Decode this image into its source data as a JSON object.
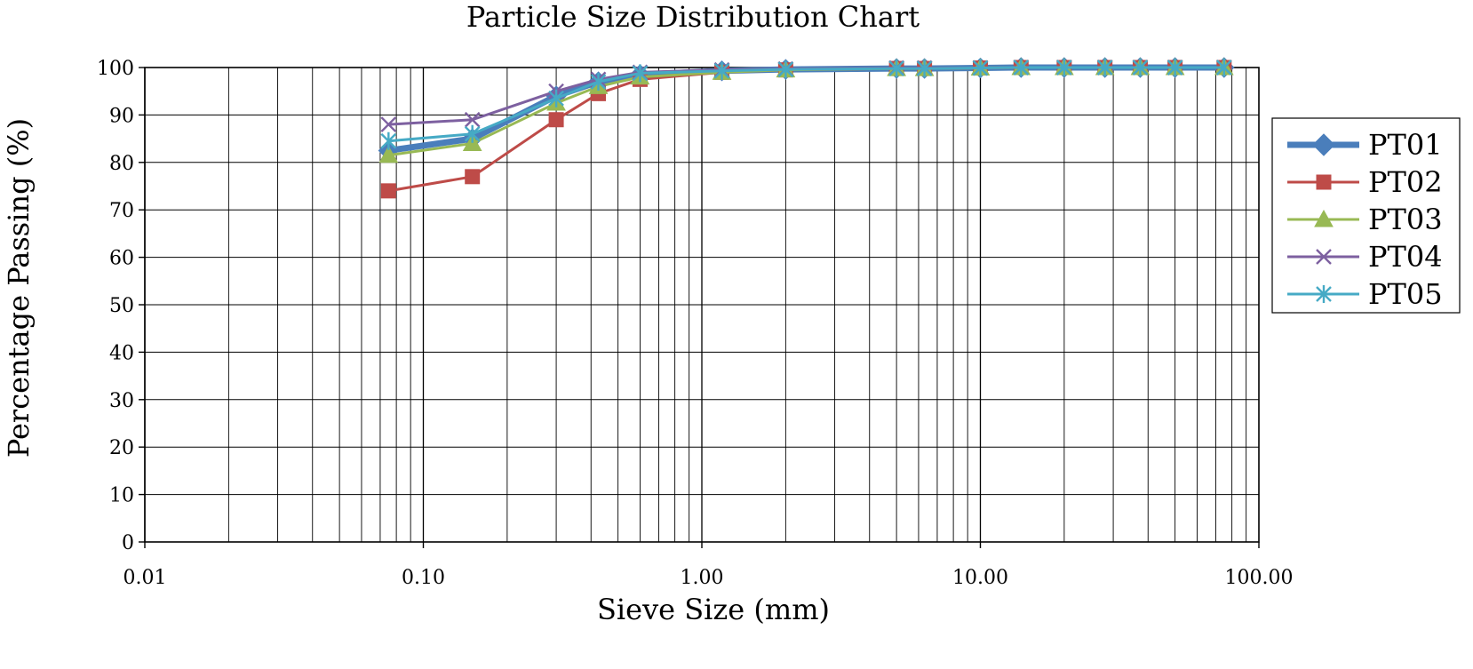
{
  "chart_data": {
    "type": "line",
    "title": "Particle Size Distribution Chart",
    "xlabel": "Sieve Size (mm)",
    "ylabel": "Percentage Passing (%)",
    "x_scale": "log",
    "xlim": [
      0.01,
      100
    ],
    "ylim": [
      0,
      100
    ],
    "x_tick_labels": [
      "0.01",
      "0.10",
      "1.00",
      "10.00",
      "100.00"
    ],
    "y_tick_labels": [
      "0",
      "10",
      "20",
      "30",
      "40",
      "50",
      "60",
      "70",
      "80",
      "90",
      "100"
    ],
    "grid": true,
    "legend_position": "right",
    "x": [
      0.075,
      0.15,
      0.3,
      0.425,
      0.6,
      1.18,
      2.0,
      5.0,
      6.3,
      10.0,
      14.0,
      20.0,
      28.0,
      37.5,
      50.0,
      75.0
    ],
    "series": [
      {
        "name": "PT01",
        "color": "#4a7ebb",
        "marker": "diamond",
        "line_width": 7,
        "values": [
          82.5,
          85,
          94,
          97,
          98.5,
          99.3,
          99.6,
          99.8,
          99.8,
          99.9,
          100,
          100,
          100,
          100,
          100,
          100
        ]
      },
      {
        "name": "PT02",
        "color": "#be4b48",
        "marker": "square",
        "line_width": 3,
        "values": [
          74,
          77,
          89,
          94.5,
          97.5,
          99,
          99.5,
          99.8,
          99.8,
          99.9,
          100,
          100,
          100,
          100,
          100,
          100
        ]
      },
      {
        "name": "PT03",
        "color": "#98b954",
        "marker": "triangle",
        "line_width": 3,
        "values": [
          81.5,
          84,
          92.5,
          96,
          98,
          99,
          99.5,
          99.8,
          99.8,
          99.9,
          100,
          100,
          100,
          100,
          100,
          100
        ]
      },
      {
        "name": "PT04",
        "color": "#7d60a0",
        "marker": "x",
        "line_width": 3,
        "values": [
          88,
          89,
          95,
          97.5,
          99,
          99.5,
          99.7,
          99.9,
          99.9,
          99.9,
          100,
          100,
          100,
          100,
          100,
          100
        ]
      },
      {
        "name": "PT05",
        "color": "#46aac5",
        "marker": "star",
        "line_width": 3,
        "values": [
          84.5,
          86,
          93.5,
          97,
          98.8,
          99.3,
          99.6,
          99.8,
          99.8,
          99.9,
          100,
          100,
          100,
          100,
          100,
          100
        ]
      }
    ]
  }
}
